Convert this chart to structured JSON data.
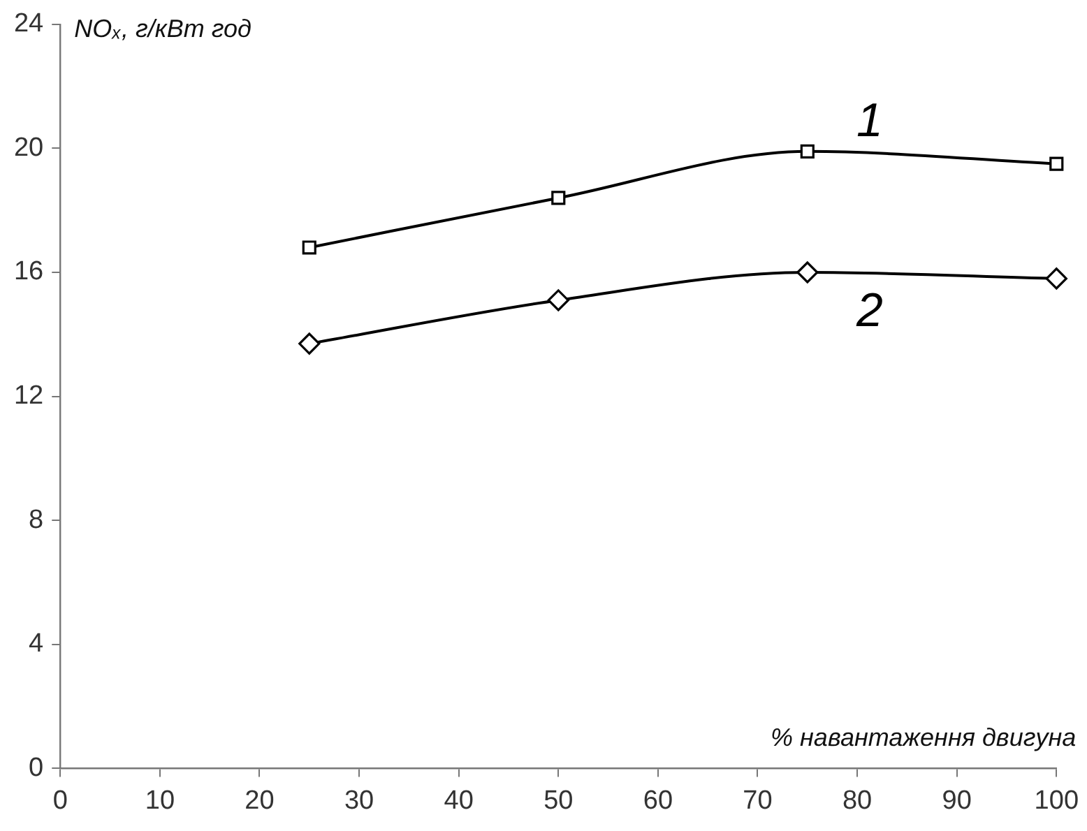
{
  "chart_data": {
    "type": "line",
    "xlabel": "% навантаження двигуна",
    "ylabel": "NOₓ, г/кВт год",
    "x": [
      25,
      50,
      75,
      100
    ],
    "series": [
      {
        "name": "1",
        "color": "#000000",
        "marker": "square",
        "values": [
          16.8,
          18.4,
          19.9,
          19.5
        ]
      },
      {
        "name": "2",
        "color": "#000000",
        "marker": "diamond",
        "values": [
          13.7,
          15.1,
          16.0,
          15.8
        ]
      }
    ],
    "xlim": [
      0,
      100
    ],
    "xticks": [
      0,
      10,
      20,
      30,
      40,
      50,
      60,
      70,
      80,
      90,
      100
    ],
    "ylim": [
      0,
      24
    ],
    "yticks": [
      0,
      4,
      8,
      12,
      16,
      20,
      24
    ],
    "grid": false,
    "legend": false,
    "line_style": "solid"
  }
}
